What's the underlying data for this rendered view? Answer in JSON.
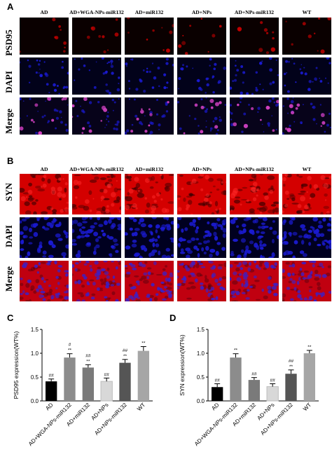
{
  "panels": {
    "A": {
      "letter": "A",
      "marker": "PSD95",
      "rows": [
        "PSD95",
        "DAPI",
        "Merge"
      ]
    },
    "B": {
      "letter": "B",
      "marker": "SYN",
      "rows": [
        "SYN",
        "DAPI",
        "Merge"
      ]
    },
    "C": {
      "letter": "C"
    },
    "D": {
      "letter": "D"
    }
  },
  "groups": [
    "AD",
    "AD+WGA-NPs-miR132",
    "AD+miR132",
    "AD+NPs",
    "AD+NPs-miR132",
    "WT"
  ],
  "colors": {
    "bars": [
      "#000000",
      "#8c8c8c",
      "#7a7a7a",
      "#d8d8d8",
      "#555555",
      "#a6a6a6"
    ],
    "red_stain": "#c00000",
    "blue_stain": "#1a1ad0"
  },
  "chart_data": [
    {
      "type": "bar",
      "title": "",
      "xlabel": "",
      "ylabel": "PSD95 expression(WT%)",
      "ylim": [
        0,
        1.5
      ],
      "yticks": [
        "0.0",
        "0.5",
        "1.0",
        "1.5"
      ],
      "categories": [
        "AD",
        "AD+WGA-NPs-miR132",
        "AD+miR132",
        "AD+NPs",
        "AD+NPs-miR132",
        "WT"
      ],
      "values": [
        0.41,
        0.91,
        0.7,
        0.41,
        0.8,
        1.05
      ],
      "errors": [
        0.05,
        0.08,
        0.06,
        0.07,
        0.07,
        0.09
      ],
      "annotations": [
        "##",
        "#\n**",
        "##\n**",
        "##",
        "##\n**",
        "**"
      ]
    },
    {
      "type": "bar",
      "title": "",
      "xlabel": "",
      "ylabel": "SYN expression(WT%)",
      "ylim": [
        0,
        1.5
      ],
      "yticks": [
        "0.0",
        "0.5",
        "1.0",
        "1.5"
      ],
      "categories": [
        "AD",
        "AD+WGA-NPs-miR132",
        "AD+miR132",
        "AD+NPs",
        "AD+NPs-miR132",
        "WT"
      ],
      "values": [
        0.29,
        0.91,
        0.44,
        0.3,
        0.57,
        1.0
      ],
      "errors": [
        0.07,
        0.08,
        0.05,
        0.06,
        0.08,
        0.06
      ],
      "annotations": [
        "##",
        "**",
        "##",
        "##",
        "##\n**",
        "**"
      ]
    }
  ]
}
